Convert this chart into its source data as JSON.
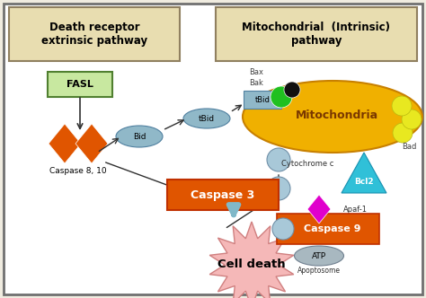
{
  "bg_color": "#f0ece0",
  "inner_bg": "#ffffff",
  "border_color": "#707070",
  "title_left": "Death receptor\nextrinsic pathway",
  "title_right": "Mitochondrial  (Intrinsic)\npathway",
  "title_box_color": "#e8ddb0",
  "title_border_color": "#908060",
  "fasl_box_color": "#c8e8a0",
  "fasl_border_color": "#508030",
  "fasl_text": "FASL",
  "caspase3_box_color": "#e05500",
  "caspase3_border_color": "#c03000",
  "caspase3_text": "Caspase 3",
  "caspase9_box_color": "#e05500",
  "caspase9_border_color": "#c03000",
  "caspase9_text": "Caspase 9",
  "cell_death_text": "Cell death",
  "cell_death_color": "#f5b8b8",
  "cell_death_border": "#d08080",
  "mito_color": "#f0b000",
  "mito_border": "#c88000",
  "mito_text": "Mitochondria",
  "mito_text_color": "#7a3800",
  "bcl2_color": "#30c0d8",
  "bcl2_border": "#1890b0",
  "cytc_color": "#a8c8d8",
  "cytc_border": "#7090a8",
  "bid_color": "#90b8c8",
  "bid_border": "#5080a0",
  "apaf_color": "#e000cc",
  "bad_color": "#e8e820",
  "bad_border": "#b8b810",
  "bax_color": "#20c020",
  "bak_color": "#101010",
  "arrow_color": "#303030",
  "big_arrow_color": "#80b8c8",
  "caspase810_color": "#e05500",
  "atp_color": "#a8b8c0",
  "atp_border": "#708090"
}
